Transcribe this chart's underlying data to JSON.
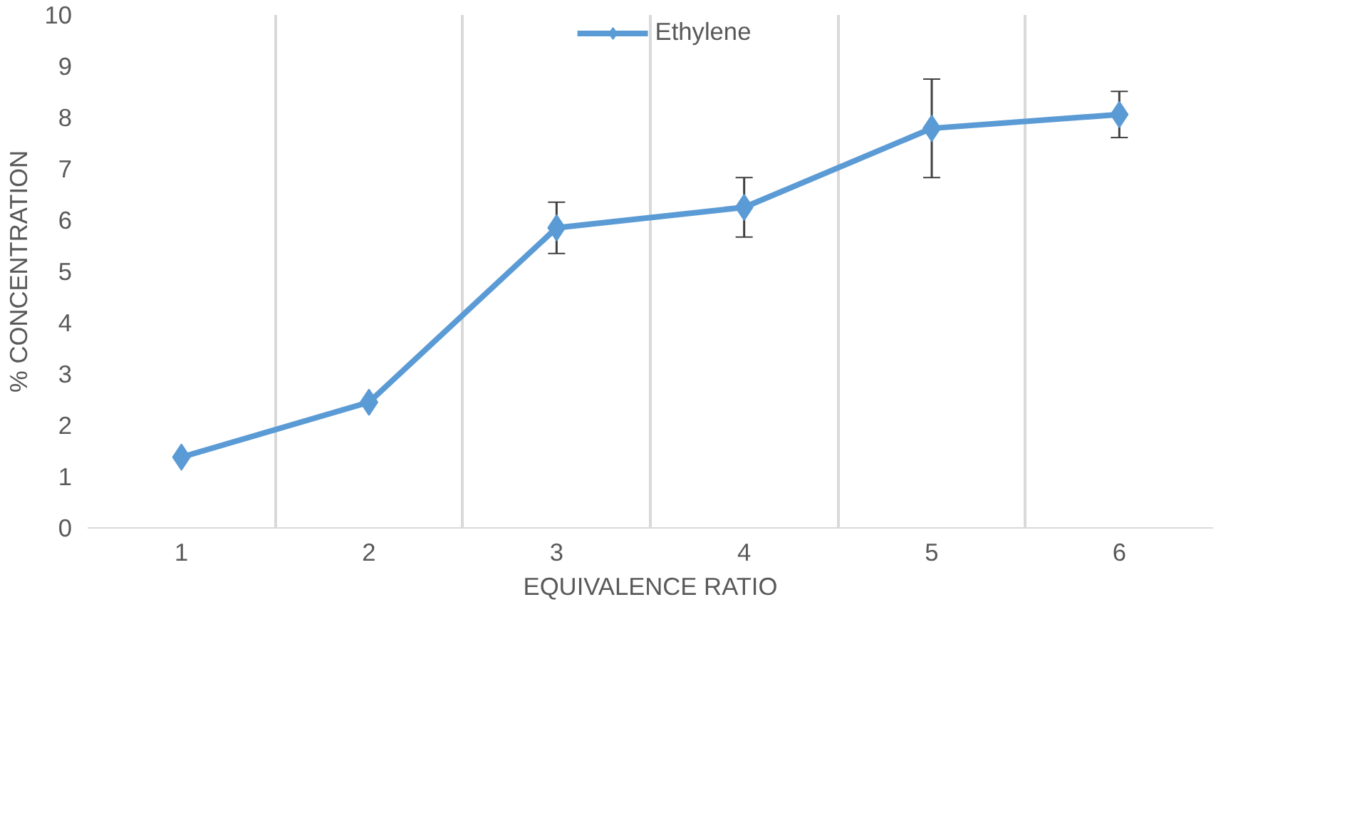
{
  "chart_data": {
    "type": "line",
    "xlabel": "EQUIVALENCE RATIO",
    "ylabel": "% CONCENTRATION",
    "categories": [
      "1",
      "2",
      "3",
      "4",
      "5",
      "6"
    ],
    "series": [
      {
        "name": "Ethylene",
        "color": "#5b9bd5",
        "values": [
          1.38,
          2.45,
          5.85,
          6.25,
          7.79,
          8.06
        ],
        "errors": [
          null,
          null,
          0.5,
          0.58,
          0.96,
          0.45
        ]
      }
    ],
    "ylim": [
      0,
      10
    ],
    "yticks": [
      0,
      1,
      2,
      3,
      4,
      5,
      6,
      7,
      8,
      9,
      10
    ],
    "grid": "x",
    "legend": "top",
    "marker": "diamond",
    "line_style": "solid"
  }
}
